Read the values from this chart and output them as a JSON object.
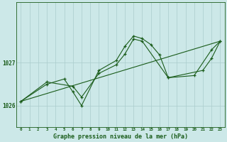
{
  "title": "Graphe pression niveau de la mer (hPa)",
  "bg_color": "#cce8e8",
  "grid_color": "#aacccc",
  "line_color": "#1a5c1a",
  "marker_color": "#1a5c1a",
  "y_ticks": [
    1026,
    1027
  ],
  "ylim": [
    1025.5,
    1028.4
  ],
  "xlim": [
    -0.5,
    23.5
  ],
  "trend_x": [
    0,
    23
  ],
  "trend_y": [
    1026.1,
    1027.5
  ],
  "series2_x": [
    0,
    3,
    6,
    7,
    9,
    11,
    12,
    13,
    14,
    17,
    20,
    22,
    23
  ],
  "series2_y": [
    1026.1,
    1026.55,
    1026.45,
    1026.2,
    1026.75,
    1026.95,
    1027.2,
    1027.55,
    1027.5,
    1026.65,
    1026.7,
    1027.3,
    1027.5
  ],
  "series3_x": [
    0,
    3,
    5,
    6,
    7,
    9,
    11,
    12,
    13,
    14,
    15,
    16,
    17,
    21,
    22,
    23
  ],
  "series3_y": [
    1026.1,
    1026.5,
    1026.62,
    1026.32,
    1026.0,
    1026.82,
    1027.05,
    1027.38,
    1027.62,
    1027.56,
    1027.42,
    1027.18,
    1026.65,
    1026.82,
    1027.1,
    1027.5
  ]
}
